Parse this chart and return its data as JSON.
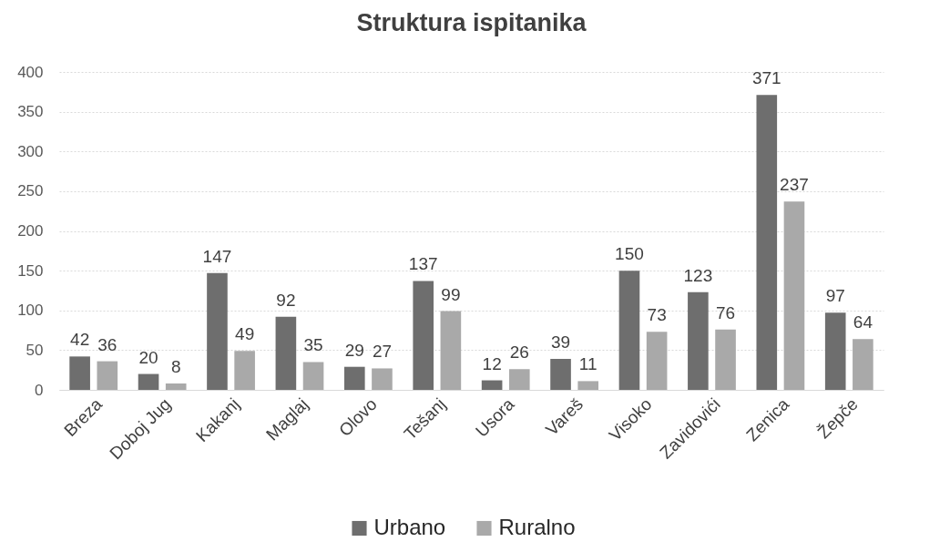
{
  "chart_data": {
    "type": "bar",
    "title": "Struktura ispitanika",
    "categories": [
      "Breza",
      "Doboj Jug",
      "Kakanj",
      "Maglaj",
      "Olovo",
      "Tešanj",
      "Usora",
      "Vareš",
      "Visoko",
      "Zavidovići",
      "Zenica",
      "Žepče"
    ],
    "series": [
      {
        "name": "Urbano",
        "color": "#6e6e6e",
        "values": [
          42,
          20,
          147,
          92,
          29,
          137,
          12,
          39,
          150,
          123,
          371,
          97
        ]
      },
      {
        "name": "Ruralno",
        "color": "#a9a9a9",
        "values": [
          36,
          8,
          49,
          35,
          27,
          99,
          26,
          11,
          73,
          76,
          237,
          64
        ]
      }
    ],
    "ylim": [
      0,
      400
    ],
    "yticks": [
      0,
      50,
      100,
      150,
      200,
      250,
      300,
      350,
      400
    ],
    "grid": "y",
    "legend": "bottom",
    "data_labels": true
  }
}
